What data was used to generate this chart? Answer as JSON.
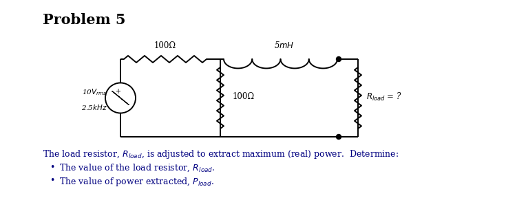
{
  "title": "Problem 5",
  "title_fontsize": 15,
  "background_color": "#ffffff",
  "circuit": {
    "source_label_v": "10$V_{rms}$",
    "source_label_f": "2.5$kHz$",
    "r1_label": "100Ω",
    "r2_label": "100Ω",
    "l1_label": "5$mH$",
    "rload_label": "$R_{load}$ = ?"
  },
  "text_line1": "The load resistor, $R_{load}$, is adjusted to extract maximum (real) power.  Determine:",
  "bullet1": "The value of the load resistor, $R_{load}$.",
  "bullet2": "The value of power extracted, $P_{load}$.",
  "text_color": "#000080"
}
